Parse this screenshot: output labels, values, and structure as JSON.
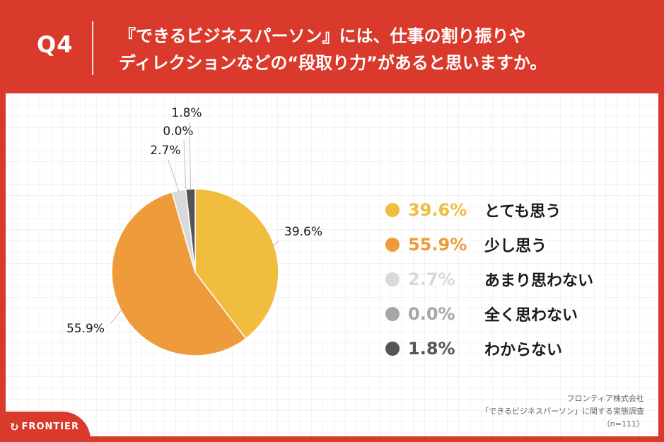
{
  "header": {
    "q_label": "Q4",
    "title_line1": "『できるビジネスパーソン』には、仕事の割り振りや",
    "title_line2": "ディレクションなどの“段取り力”があると思いますか。"
  },
  "chart_data": {
    "type": "pie",
    "slices": [
      {
        "label": "とても思う",
        "value": 39.6,
        "pct": "39.6%",
        "color": "#f0bd3f"
      },
      {
        "label": "少し思う",
        "value": 55.9,
        "pct": "55.9%",
        "color": "#ee9b3b"
      },
      {
        "label": "あまり思わない",
        "value": 2.7,
        "pct": "2.7%",
        "color": "#d9d9d9"
      },
      {
        "label": "全く思わない",
        "value": 0.0,
        "pct": "0.0%",
        "color": "#a6a6a6"
      },
      {
        "label": "わからない",
        "value": 1.8,
        "pct": "1.8%",
        "color": "#555555"
      }
    ],
    "start": "12 o'clock, clockwise",
    "legend_position": "right"
  },
  "source": {
    "line1": "フロンティア株式会社",
    "line2": "「できるビジネスパーソン」に関する実態調査",
    "line3": "（n=111）"
  },
  "brand": {
    "name": "FRONTIER",
    "icon": "frontier-logo-icon"
  }
}
